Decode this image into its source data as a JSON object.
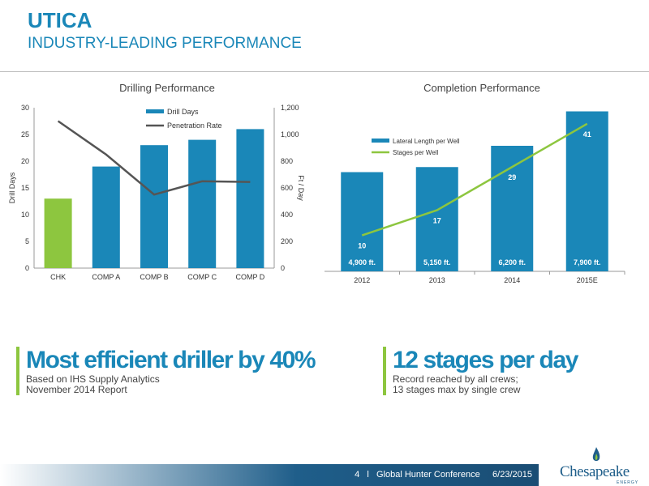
{
  "slide": {
    "title": "UTICA",
    "subtitle": "INDUSTRY-LEADING PERFORMANCE"
  },
  "colors": {
    "accent": "#1a87b8",
    "green": "#8dc63f",
    "gray_line": "#555555"
  },
  "chart_data": [
    {
      "type": "bar",
      "title": "Drilling Performance",
      "categories": [
        "CHK",
        "COMP A",
        "COMP B",
        "COMP C",
        "COMP D"
      ],
      "series": [
        {
          "name": "Drill Days",
          "type": "bar",
          "axis": "left",
          "values": [
            13,
            19,
            23,
            24,
            26
          ]
        },
        {
          "name": "Penetration Rate",
          "type": "line",
          "axis": "right",
          "values": [
            1100,
            850,
            550,
            650,
            645
          ]
        }
      ],
      "ylabel": "Drill Days",
      "y2label": "Ft / Day",
      "ylim": [
        0,
        30
      ],
      "y2lim": [
        0,
        1200
      ],
      "yticks": [
        "0",
        "5",
        "10",
        "15",
        "20",
        "25",
        "30"
      ],
      "y2ticks": [
        "0",
        "200",
        "400",
        "600",
        "800",
        "1,000",
        "1,200"
      ],
      "highlight_colors": [
        "#8dc63f",
        "#1a87b8",
        "#1a87b8",
        "#1a87b8",
        "#1a87b8"
      ],
      "legend": "top-center"
    },
    {
      "type": "bar",
      "title": "Completion Performance",
      "categories": [
        "2012",
        "2013",
        "2014",
        "2015E"
      ],
      "series": [
        {
          "name": "Lateral Length per Well",
          "type": "bar",
          "values": [
            4900,
            5150,
            6200,
            7900
          ],
          "labels": [
            "4,900 ft.",
            "5,150 ft.",
            "6,200 ft.",
            "7,900 ft."
          ]
        },
        {
          "name": "Stages per Well",
          "type": "line",
          "values": [
            10,
            17,
            29,
            41
          ],
          "labels": [
            "10",
            "17",
            "29",
            "41"
          ]
        }
      ],
      "ylim": [
        0,
        8000
      ],
      "y2lim": [
        0,
        45
      ],
      "legend": "top-left"
    }
  ],
  "callouts": [
    {
      "head": "Most efficient driller by 40%",
      "sub1": "Based on IHS Supply Analytics",
      "sub2": "November 2014 Report"
    },
    {
      "head": "12 stages per day",
      "sub1": "Record reached by all crews;",
      "sub2": "13 stages max by single crew"
    }
  ],
  "footer": {
    "text": "4   l   Global Hunter Conference     6/23/2015"
  },
  "logo": {
    "word": "Chesapeake",
    "energy": "ENERGY"
  }
}
